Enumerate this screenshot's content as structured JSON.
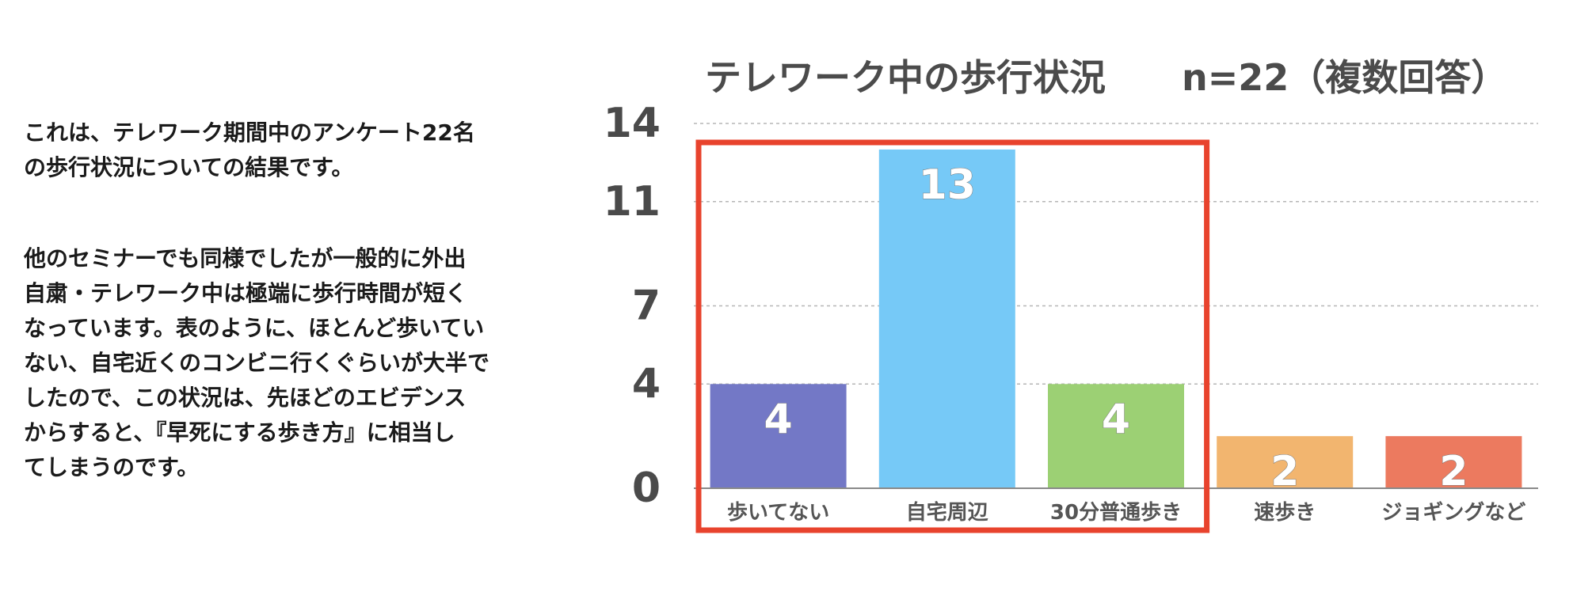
{
  "paragraphs": {
    "p1": "これは、テレワーク期間中のアンケート22名\nの歩行状況についての結果です。",
    "p2": "他のセミナーでも同様でしたが一般的に外出\n自粛・テレワーク中は極端に歩行時間が短く\nなっています。表のように、ほとんど歩いてい\nない、自宅近くのコンビニ行くぐらいが大半で\nしたので、この状況は、先ほどのエビデンス\nからすると、『早死にする歩き方』に相当し\nてしまうのです。"
  },
  "chart_data": {
    "type": "bar",
    "title": "テレワーク中の歩行状況",
    "subtitle": "n=22（複数回答）",
    "categories": [
      "歩いてない",
      "自宅周辺",
      "30分普通歩き",
      "速歩き",
      "ジョギングなど"
    ],
    "values": [
      4,
      13,
      4,
      2,
      2
    ],
    "value_labels": [
      "4",
      "13",
      "4",
      "2",
      "2"
    ],
    "colors": [
      "#7378c6",
      "#76c9f7",
      "#9cd074",
      "#f2b56f",
      "#ec7a5f"
    ],
    "yticks": [
      0,
      4,
      7,
      11,
      14
    ],
    "ytick_labels": [
      "0",
      "4",
      "7",
      "11",
      "14"
    ],
    "ylim": [
      0,
      14
    ],
    "grid": "dashed horizontal",
    "highlight": {
      "categories": [
        "歩いてない",
        "自宅周辺",
        "30分普通歩き"
      ],
      "color": "#e8432d"
    }
  }
}
